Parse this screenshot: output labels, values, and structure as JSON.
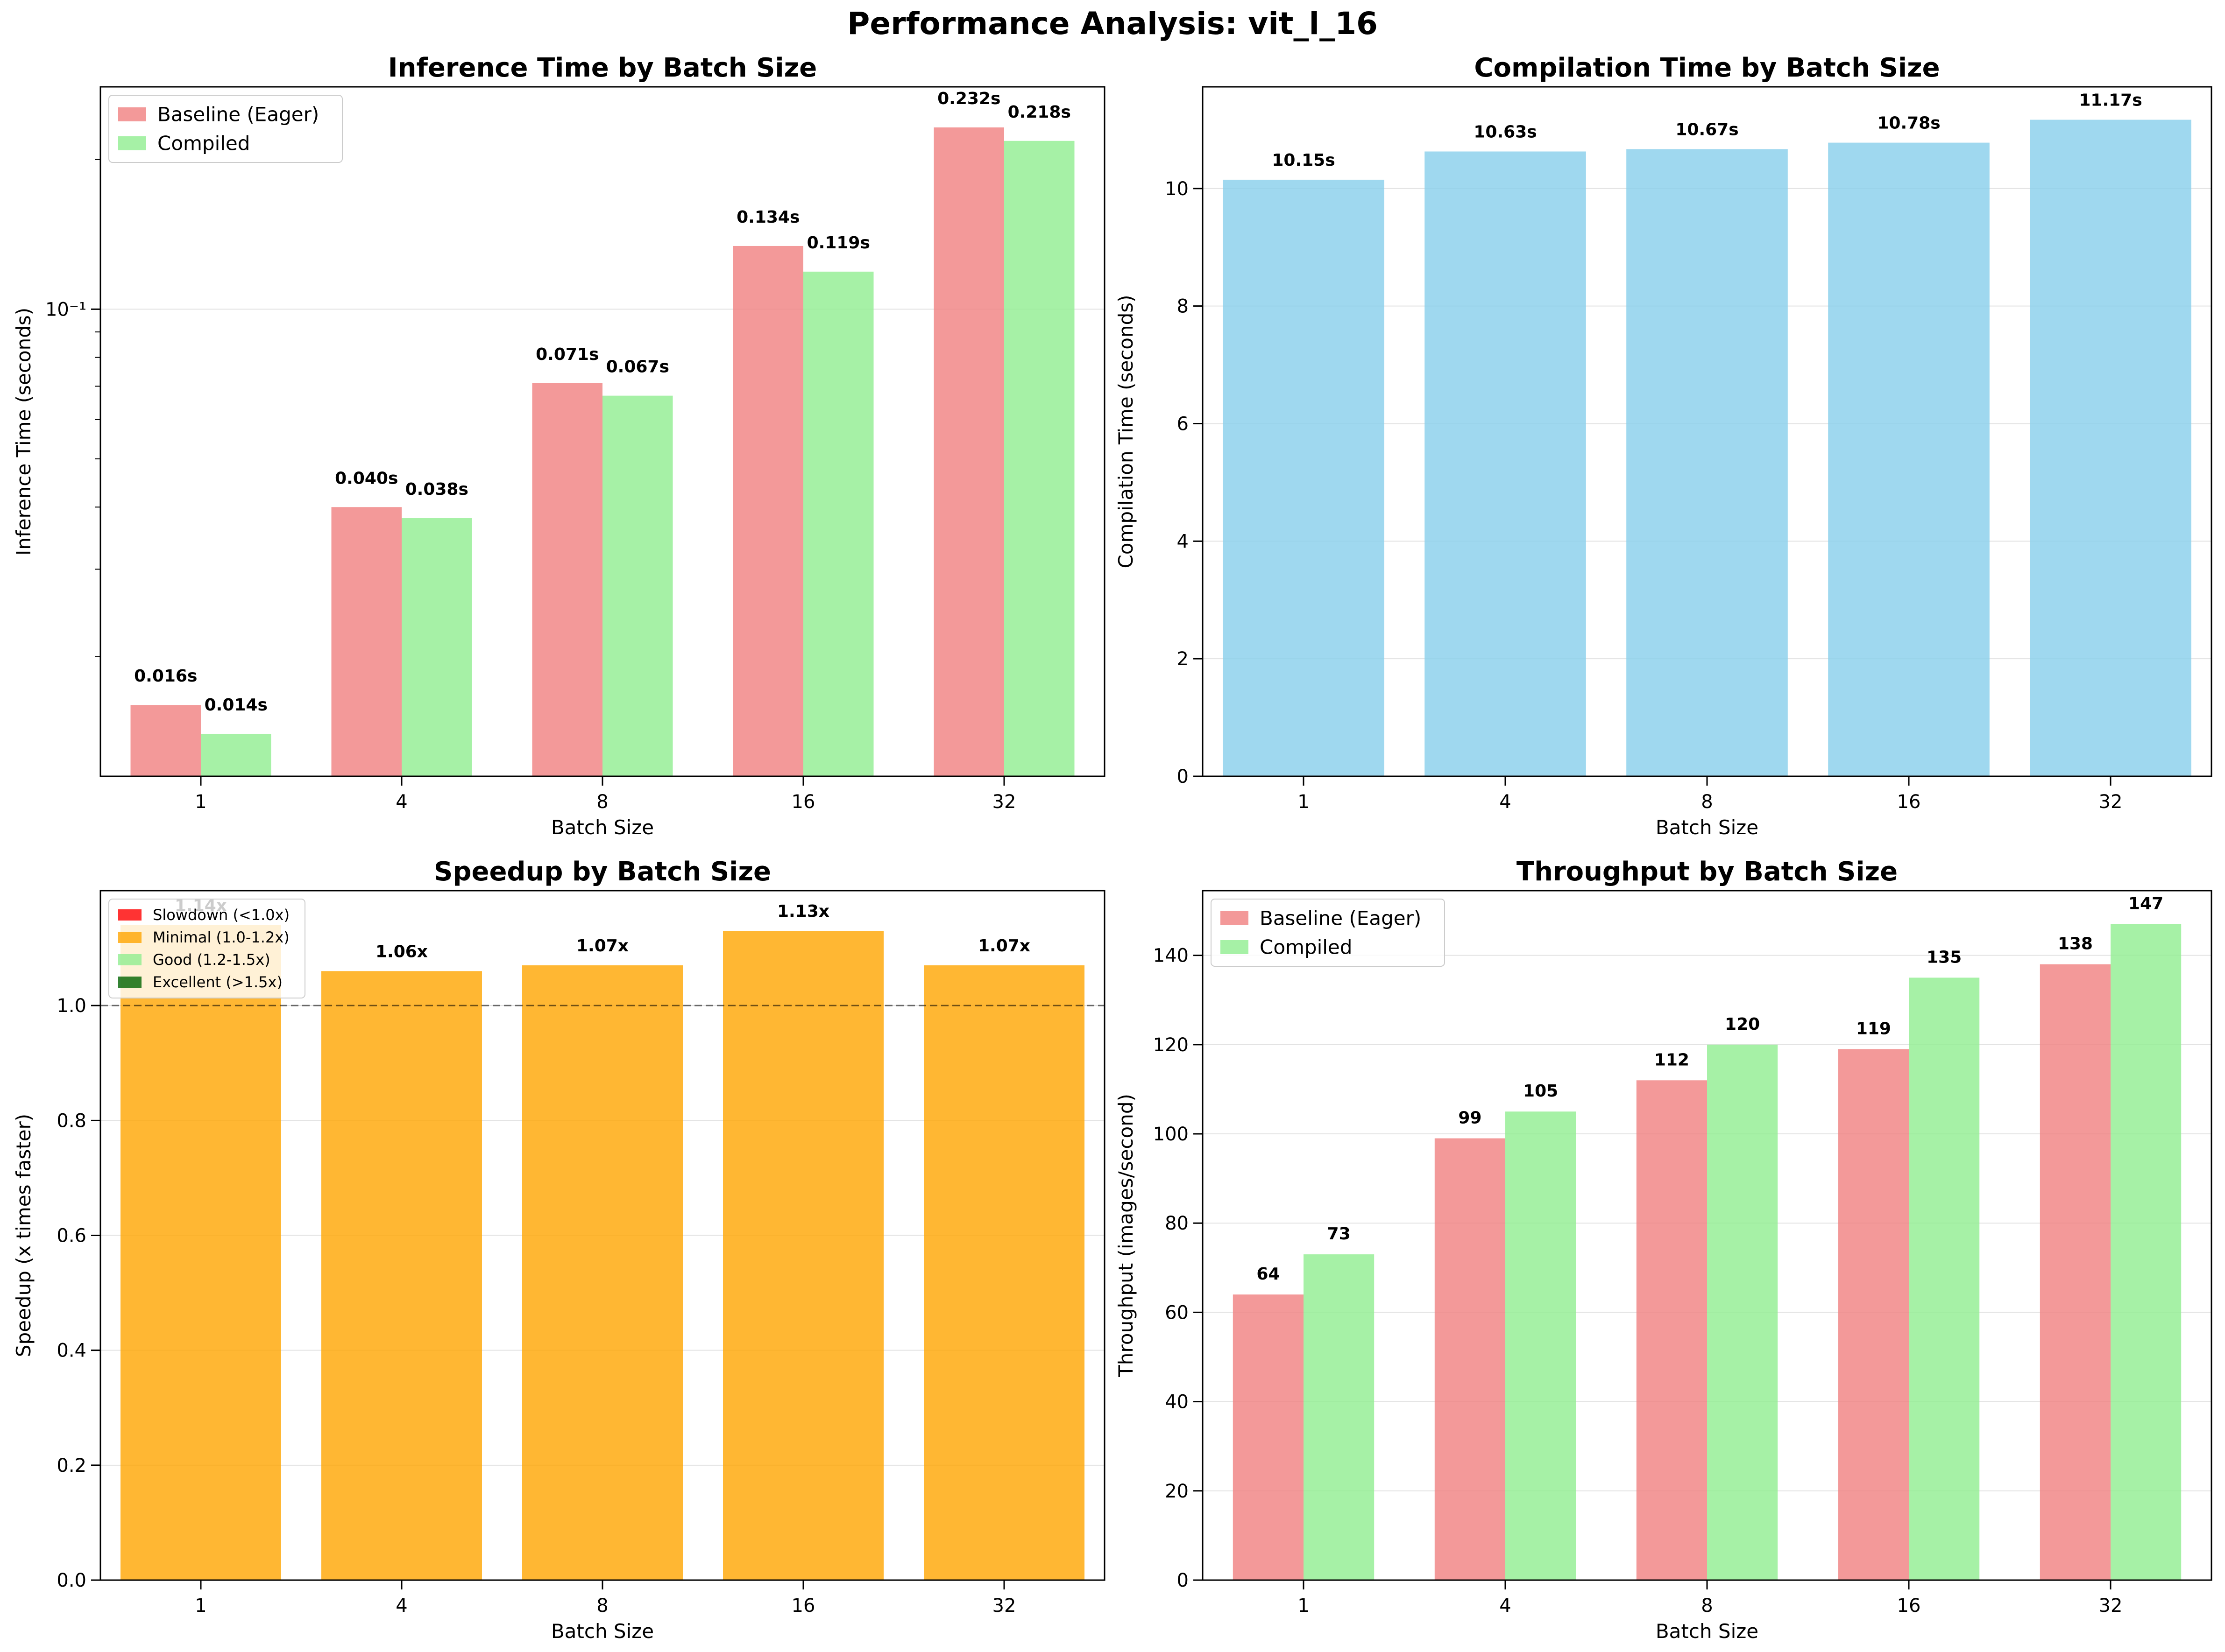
{
  "figure": {
    "title": "Performance Analysis: vit_l_16"
  },
  "chart_data": [
    {
      "type": "bar",
      "title": "Inference Time by Batch Size",
      "xlabel": "Batch Size",
      "ylabel": "Inference Time (seconds)",
      "yscale": "log",
      "ylim": [
        0.0115,
        0.28
      ],
      "major_tick_label": "10⁻¹",
      "major_tick_value": 0.1,
      "minor_ticks": [
        0.02,
        0.03,
        0.04,
        0.05,
        0.06,
        0.07,
        0.08,
        0.09,
        0.2
      ],
      "categories": [
        "1",
        "4",
        "8",
        "16",
        "32"
      ],
      "series": [
        {
          "name": "Baseline (Eager)",
          "color": "#F08080",
          "values": [
            0.016,
            0.04,
            0.071,
            0.134,
            0.232
          ],
          "labels": [
            "0.016s",
            "0.040s",
            "0.071s",
            "0.134s",
            "0.232s"
          ]
        },
        {
          "name": "Compiled",
          "color": "#90EE90",
          "values": [
            0.014,
            0.038,
            0.067,
            0.119,
            0.218
          ],
          "labels": [
            "0.014s",
            "0.038s",
            "0.067s",
            "0.119s",
            "0.218s"
          ]
        }
      ],
      "legend": "top-left",
      "grid": "y"
    },
    {
      "type": "bar",
      "title": "Compilation Time by Batch Size",
      "xlabel": "Batch Size",
      "ylabel": "Compilation Time (seconds)",
      "ylim": [
        0,
        11.73
      ],
      "yticks": [
        0,
        2,
        4,
        6,
        8,
        10
      ],
      "categories": [
        "1",
        "4",
        "8",
        "16",
        "32"
      ],
      "series": [
        {
          "name": "Compilation Time",
          "color": "#87CEEB",
          "values": [
            10.15,
            10.63,
            10.67,
            10.78,
            11.17
          ],
          "labels": [
            "10.15s",
            "10.63s",
            "10.67s",
            "10.78s",
            "11.17s"
          ]
        }
      ],
      "grid": "y"
    },
    {
      "type": "bar",
      "title": "Speedup by Batch Size",
      "xlabel": "Batch Size",
      "ylabel": "Speedup (x times faster)",
      "ylim": [
        0,
        1.2
      ],
      "yticks": [
        0.0,
        0.2,
        0.4,
        0.6,
        0.8,
        1.0
      ],
      "reference_line": 1.0,
      "categories": [
        "1",
        "4",
        "8",
        "16",
        "32"
      ],
      "values": [
        1.14,
        1.06,
        1.07,
        1.13,
        1.07
      ],
      "labels": [
        "1.14x",
        "1.06x",
        "1.07x",
        "1.13x",
        "1.07x"
      ],
      "bar_color": "#FFA500",
      "legend_entries": [
        {
          "name": "Slowdown (<1.0x)",
          "color": "#FF0000"
        },
        {
          "name": "Minimal (1.0-1.2x)",
          "color": "#FFA500"
        },
        {
          "name": "Good (1.2-1.5x)",
          "color": "#90EE90"
        },
        {
          "name": "Excellent (>1.5x)",
          "color": "#006400"
        }
      ],
      "legend": "top-left",
      "grid": "y"
    },
    {
      "type": "bar",
      "title": "Throughput by Batch Size",
      "xlabel": "Batch Size",
      "ylabel": "Throughput (images/second)",
      "ylim": [
        0,
        154.5
      ],
      "yticks": [
        0,
        20,
        40,
        60,
        80,
        100,
        120,
        140
      ],
      "categories": [
        "1",
        "4",
        "8",
        "16",
        "32"
      ],
      "series": [
        {
          "name": "Baseline (Eager)",
          "color": "#F08080",
          "values": [
            64,
            99,
            112,
            119,
            138
          ],
          "labels": [
            "64",
            "99",
            "112",
            "119",
            "138"
          ]
        },
        {
          "name": "Compiled",
          "color": "#90EE90",
          "values": [
            73,
            105,
            120,
            135,
            147
          ],
          "labels": [
            "73",
            "105",
            "120",
            "135",
            "147"
          ]
        }
      ],
      "legend": "top-left",
      "grid": "y"
    }
  ]
}
